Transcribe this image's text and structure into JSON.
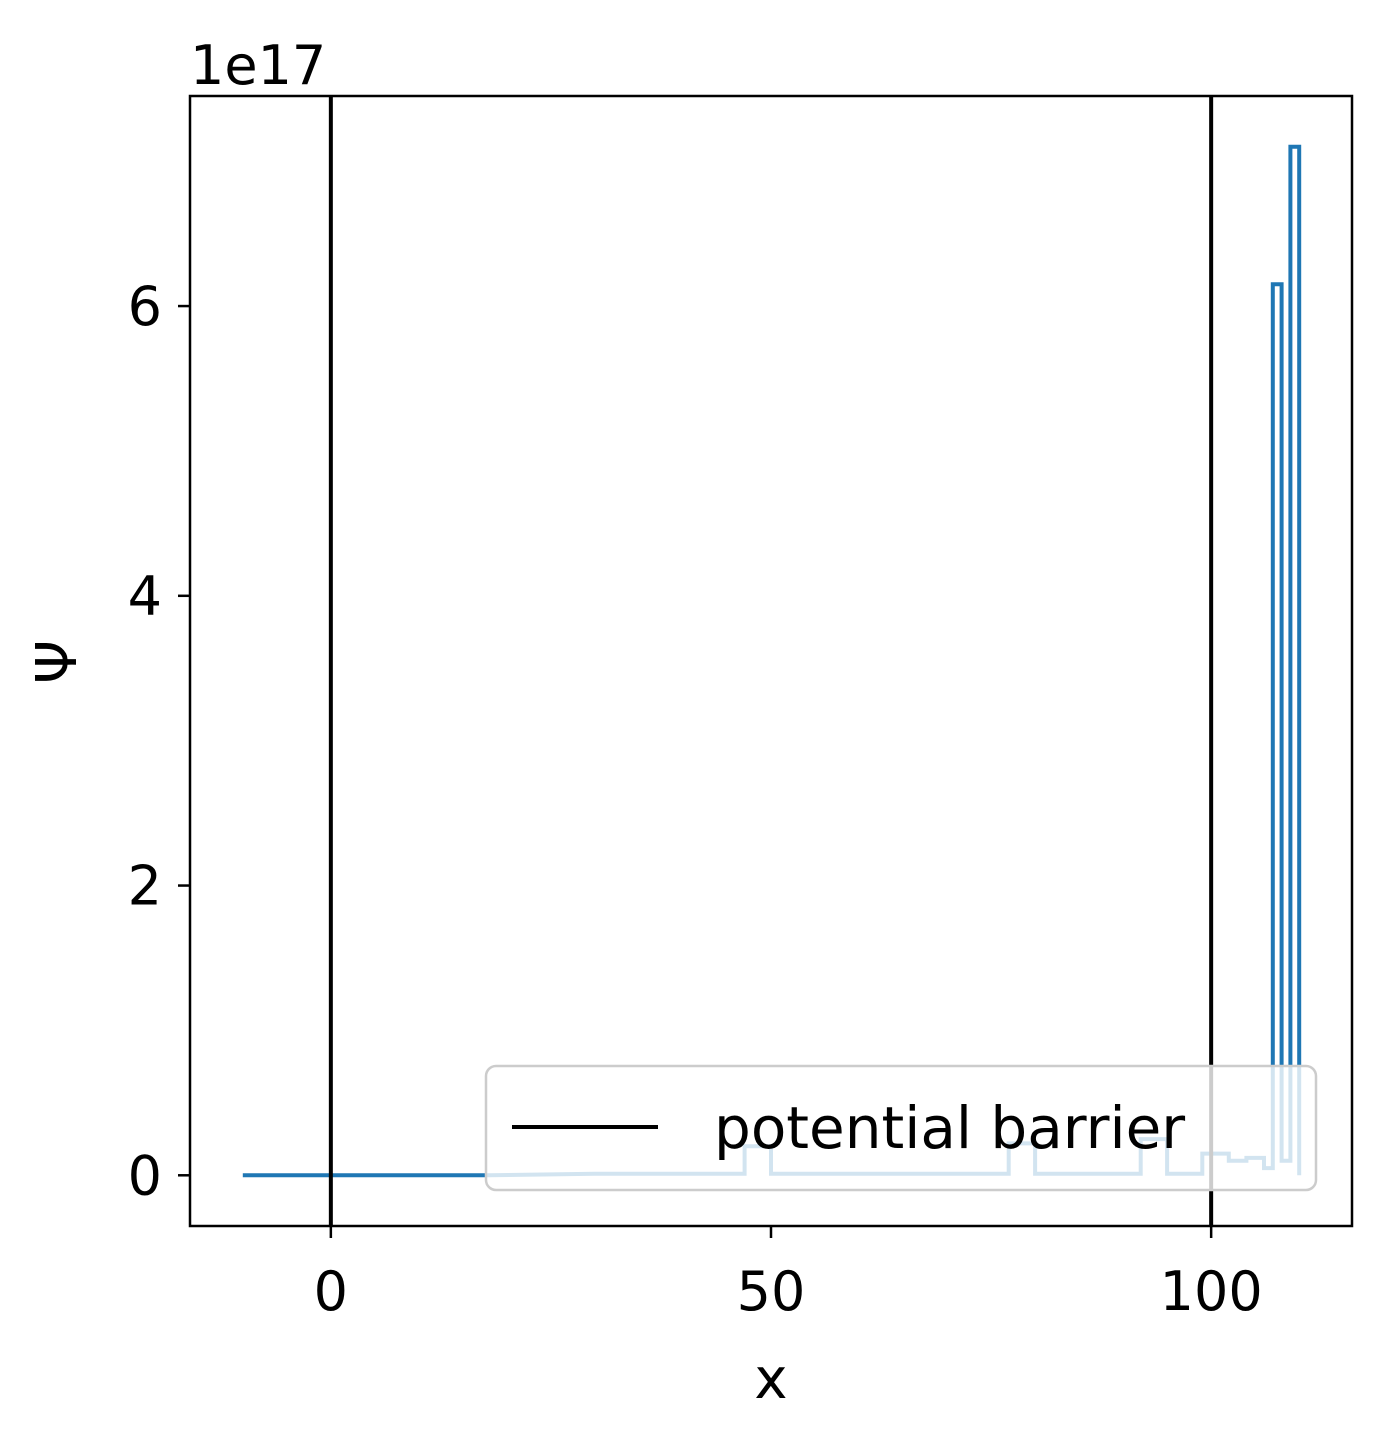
{
  "chart_data": {
    "type": "line",
    "xlabel": "x",
    "ylabel": "Ψ",
    "offset_label": "1e17",
    "xlim": [
      -16,
      116
    ],
    "ylim": [
      -0.35,
      7.45
    ],
    "y_multiplier": "1e17",
    "xticks": [
      0,
      50,
      100
    ],
    "xtick_labels": [
      "0",
      "50",
      "100"
    ],
    "yticks": [
      0,
      2,
      4,
      6
    ],
    "ytick_labels": [
      "0",
      "2",
      "4",
      "6"
    ],
    "grid": false,
    "legend": {
      "position": "lower right",
      "entries": [
        "potential barrier"
      ]
    },
    "series": [
      {
        "color": "#1f77b4",
        "x": [
          -10,
          0,
          10,
          18,
          30,
          40,
          47,
          47,
          50,
          50,
          60,
          70,
          77,
          77,
          80,
          80,
          88,
          92,
          92,
          95,
          95,
          99,
          99,
          102,
          102,
          104,
          104,
          106,
          106,
          107,
          107,
          108,
          108,
          109,
          109,
          110,
          110
        ],
        "y": [
          0,
          0,
          0,
          0,
          0.01,
          0.01,
          0.01,
          0.2,
          0.2,
          0.01,
          0.01,
          0.01,
          0.01,
          0.22,
          0.22,
          0.01,
          0.01,
          0.01,
          0.25,
          0.25,
          0.01,
          0.01,
          0.15,
          0.15,
          0.1,
          0.1,
          0.12,
          0.12,
          0.05,
          0.05,
          6.15,
          6.15,
          0.1,
          0.1,
          7.1,
          7.1,
          0
        ]
      }
    ],
    "vlines": [
      {
        "name": "potential barrier",
        "x": 0,
        "color": "#000000"
      },
      {
        "name": "potential barrier",
        "x": 100,
        "color": "#000000"
      }
    ]
  }
}
